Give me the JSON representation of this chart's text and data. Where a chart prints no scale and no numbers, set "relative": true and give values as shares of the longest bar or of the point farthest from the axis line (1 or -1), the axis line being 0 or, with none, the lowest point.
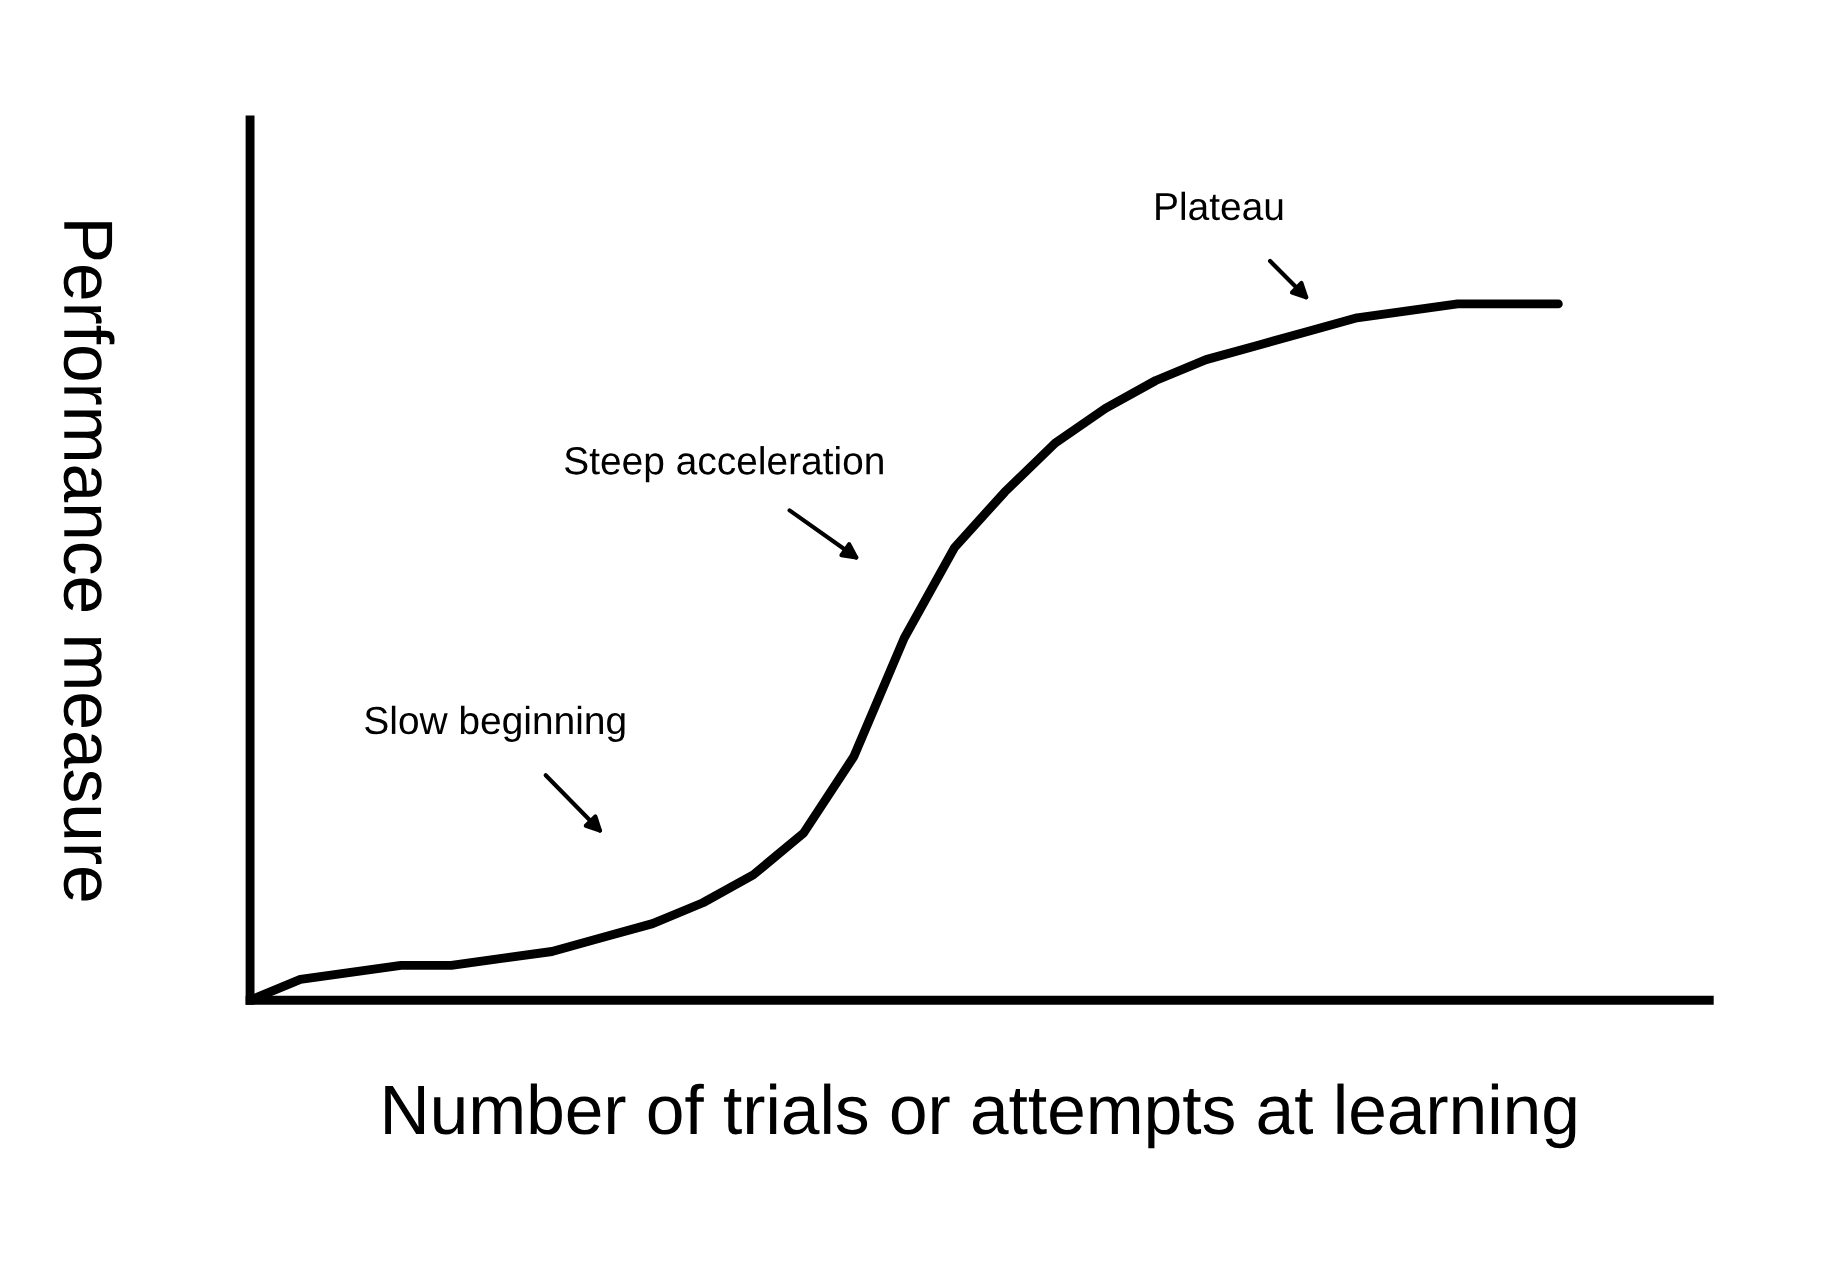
{
  "chart_data": {
    "type": "line",
    "relative": true,
    "xlabel": "Number of trials or attempts at learning",
    "ylabel": "Performance measure",
    "categories": [
      null,
      null,
      null,
      null,
      null,
      null,
      null,
      null,
      null,
      null,
      null,
      null,
      null,
      null,
      null,
      null,
      null,
      null,
      null,
      null,
      null,
      null,
      null,
      null,
      null,
      null,
      null,
      null,
      null,
      null
    ],
    "series": [
      {
        "color": "#000000",
        "values": [
          0,
          0.03,
          0.04,
          0.05,
          0.05,
          0.06,
          0.07,
          0.09,
          0.11,
          0.14,
          0.18,
          0.24,
          0.35,
          0.52,
          0.65,
          0.73,
          0.8,
          0.85,
          0.89,
          0.92,
          0.94,
          0.96,
          0.98,
          0.99,
          1,
          1,
          1,
          null,
          null,
          null
        ]
      }
    ],
    "annotations": [
      "Slow beginning",
      "Steep acceleration",
      "Plateau"
    ],
    "tick_labels": false,
    "legend": false,
    "marker": "none",
    "line_style": "solid"
  }
}
